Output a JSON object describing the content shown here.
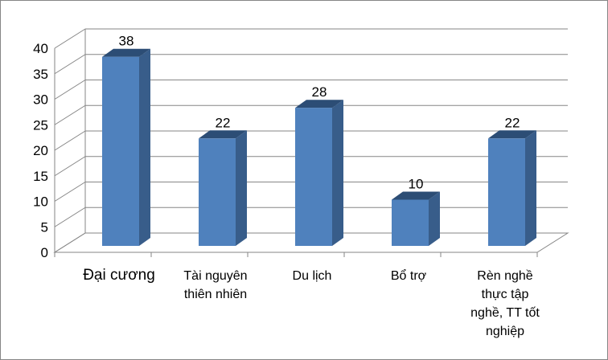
{
  "chart_data": {
    "type": "bar",
    "title": "",
    "xlabel": "",
    "ylabel": "",
    "categories": [
      [
        "Đại cương"
      ],
      [
        "Tài nguyên",
        "thiên nhiên"
      ],
      [
        "Du lịch"
      ],
      [
        "Bổ trợ"
      ],
      [
        "Rèn nghề",
        "thực tập",
        "nghề, TT tốt",
        "nghiệp"
      ]
    ],
    "values": [
      38,
      22,
      28,
      10,
      22
    ],
    "data_labels": [
      "38",
      "22",
      "28",
      "10",
      "22"
    ],
    "yticks": [
      "0",
      "5",
      "10",
      "15",
      "20",
      "25",
      "30",
      "35",
      "40"
    ],
    "ylim": [
      0,
      40
    ],
    "grid": true,
    "style": "3d-column",
    "colors": {
      "bar_front": "#4f81bd",
      "bar_top": "#2c4d75",
      "bar_side": "#385d8a",
      "grid": "#868686"
    }
  }
}
